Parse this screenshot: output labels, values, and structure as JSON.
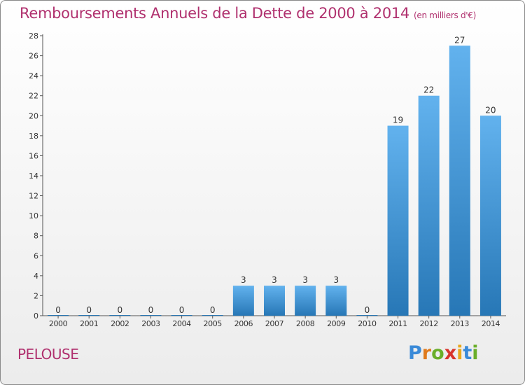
{
  "title": "Remboursements Annuels de la Dette de 2000 à 2014",
  "subtitle": "(en milliers d'€)",
  "footer_label": "PELOUSE",
  "logo": {
    "letters": [
      "P",
      "r",
      "o",
      "x",
      "i",
      "t",
      "i"
    ],
    "colors": [
      "#3a8ad8",
      "#e07a1c",
      "#6aae2a",
      "#d8342c",
      "#e8a81c",
      "#3a8ad8",
      "#6aae2a"
    ]
  },
  "colors": {
    "title": "#b0306e",
    "bar_light": "#62b2ee",
    "bar_dark": "#2777b6",
    "axis": "#555555"
  },
  "chart_data": {
    "type": "bar",
    "categories": [
      "2000",
      "2001",
      "2002",
      "2003",
      "2004",
      "2005",
      "2006",
      "2007",
      "2008",
      "2009",
      "2010",
      "2011",
      "2012",
      "2013",
      "2014"
    ],
    "values": [
      0,
      0,
      0,
      0,
      0,
      0,
      3,
      3,
      3,
      3,
      0,
      19,
      22,
      27,
      20
    ],
    "data_labels": [
      "0",
      "0",
      "0",
      "0",
      "0",
      "0",
      "3",
      "3",
      "3",
      "3",
      "0",
      "19",
      "22",
      "27",
      "20"
    ],
    "ylim": [
      0,
      28
    ],
    "yticks": [
      "0",
      "2",
      "4",
      "6",
      "8",
      "10",
      "12",
      "14",
      "16",
      "18",
      "20",
      "22",
      "24",
      "26",
      "28"
    ],
    "grid": false,
    "legend": "none",
    "xlabel": "",
    "ylabel": ""
  }
}
